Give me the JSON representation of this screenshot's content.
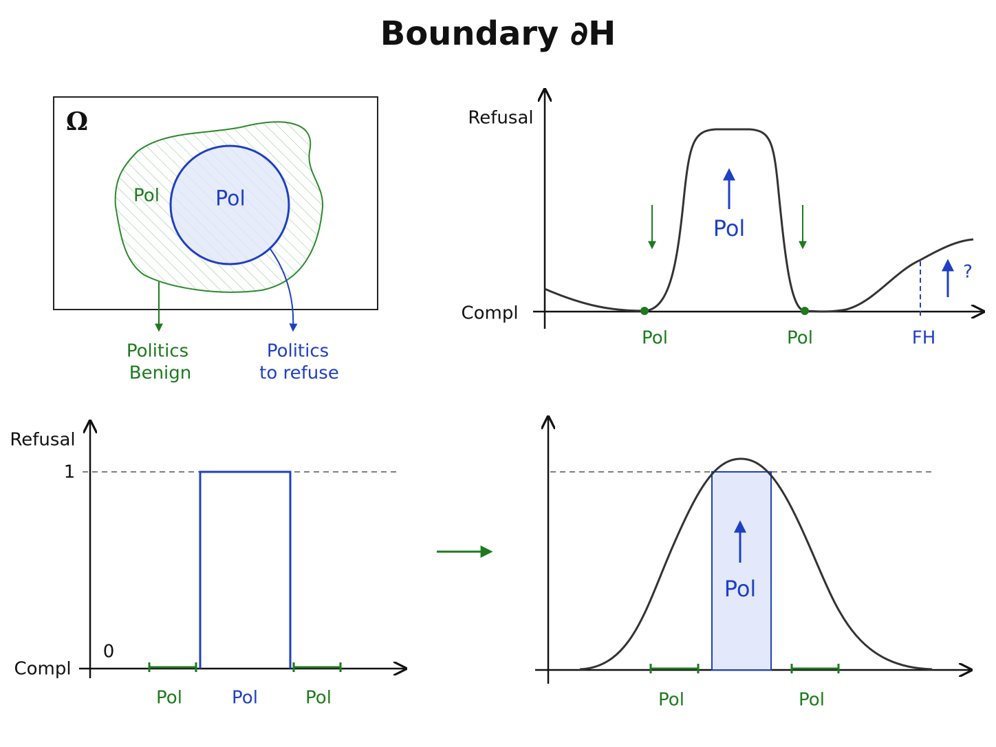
{
  "title": "Boundary ∂H",
  "venn": {
    "omega": "Ω",
    "outer_label": "Pol",
    "inner_label": "Pol",
    "benign_label": [
      "Politics",
      "Benign"
    ],
    "refuse_label": [
      "Politics",
      "to refuse"
    ]
  },
  "smooth_plot": {
    "y_label": "Refusal",
    "x_label": "Compl",
    "peak_label": "Pol",
    "left_label": "Pol",
    "right_label": "Pol",
    "far_label": "FH",
    "question": "?"
  },
  "step_plot": {
    "y_label": "Refusal",
    "tick_high": "1",
    "tick_low": "0",
    "x_label": "Compl",
    "x_labels": [
      "Pol",
      "Pol",
      "Pol"
    ]
  },
  "bell_plot": {
    "peak_label": "Pol",
    "x_labels": [
      "Pol",
      "Pol"
    ]
  }
}
